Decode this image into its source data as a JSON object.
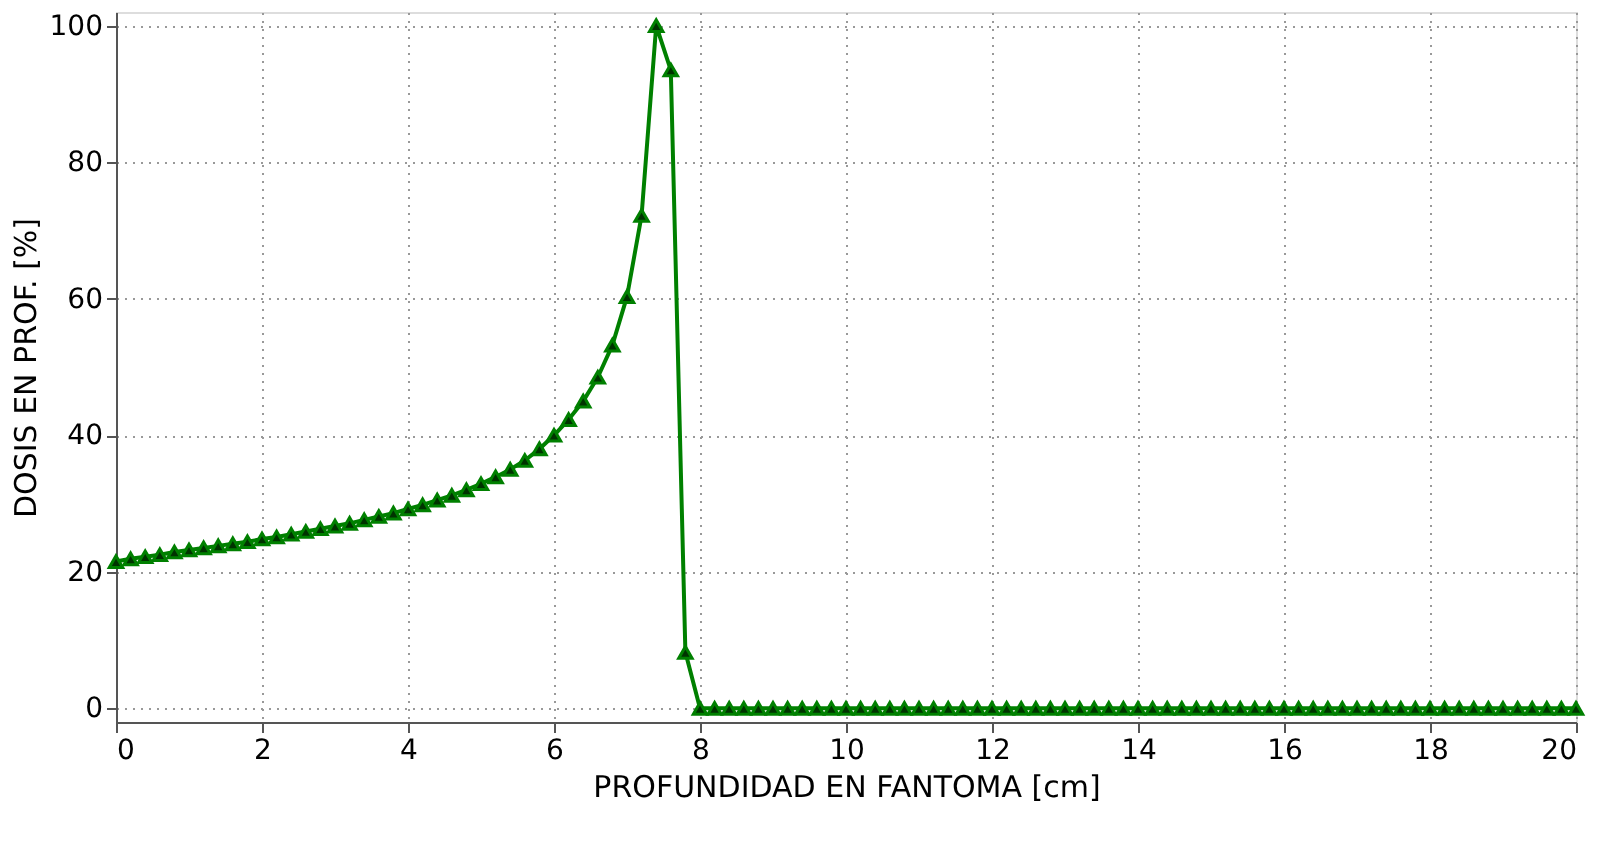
{
  "chart_data": {
    "type": "line",
    "xlabel": "PROFUNDIDAD EN FANTOMA [cm]",
    "ylabel": "DOSIS EN PROF. [%]",
    "x": [
      0,
      0.2,
      0.4,
      0.6,
      0.8,
      1,
      1.2,
      1.4,
      1.6,
      1.8,
      2,
      2.2,
      2.4,
      2.6,
      2.8,
      3,
      3.2,
      3.4,
      3.6,
      3.8,
      4,
      4.2,
      4.4,
      4.6,
      4.8,
      5,
      5.2,
      5.4,
      5.6,
      5.8,
      6,
      6.2,
      6.4,
      6.6,
      6.8,
      7,
      7.2,
      7.4,
      7.6,
      7.8,
      8,
      8.2,
      8.4,
      8.6,
      8.8,
      9,
      9.2,
      9.4,
      9.6,
      9.8,
      10,
      10.2,
      10.4,
      10.6,
      10.8,
      11,
      11.2,
      11.4,
      11.6,
      11.8,
      12,
      12.2,
      12.4,
      12.6,
      12.8,
      13,
      13.2,
      13.4,
      13.6,
      13.8,
      14,
      14.2,
      14.4,
      14.6,
      14.8,
      15,
      15.2,
      15.4,
      15.6,
      15.8,
      16,
      16.2,
      16.4,
      16.6,
      16.8,
      17,
      17.2,
      17.4,
      17.6,
      17.8,
      18,
      18.2,
      18.4,
      18.6,
      18.8,
      19,
      19.2,
      19.4,
      19.6,
      19.8,
      20
    ],
    "series": [
      {
        "color": "#008000",
        "values": [
          21.5,
          21.9,
          22.2,
          22.5,
          22.9,
          23.2,
          23.5,
          23.8,
          24.1,
          24.4,
          24.8,
          25.1,
          25.5,
          25.9,
          26.3,
          26.7,
          27.1,
          27.6,
          28.1,
          28.6,
          29.2,
          29.8,
          30.5,
          31.2,
          32.0,
          32.9,
          33.9,
          35.0,
          36.3,
          38.0,
          40.0,
          42.3,
          45.0,
          48.5,
          53.2,
          60.3,
          72.2,
          100,
          93.5,
          8.2,
          0,
          0,
          0,
          0,
          0,
          0,
          0,
          0,
          0,
          0,
          0,
          0,
          0,
          0,
          0,
          0,
          0,
          0,
          0,
          0,
          0,
          0,
          0,
          0,
          0,
          0,
          0,
          0,
          0,
          0,
          0,
          0,
          0,
          0,
          0,
          0,
          0,
          0,
          0,
          0,
          0,
          0,
          0,
          0,
          0,
          0,
          0,
          0,
          0,
          0,
          0,
          0,
          0,
          0,
          0,
          0,
          0,
          0,
          0,
          0,
          0
        ]
      }
    ],
    "xlim": [
      0,
      20
    ],
    "xticks": [
      0,
      2,
      4,
      6,
      8,
      10,
      12,
      14,
      16,
      18,
      20
    ],
    "ylim": [
      -2,
      102
    ],
    "yticks": [
      0,
      20,
      40,
      60,
      80,
      100
    ],
    "grid": true,
    "marker": "triangle",
    "line_style": "solid"
  }
}
